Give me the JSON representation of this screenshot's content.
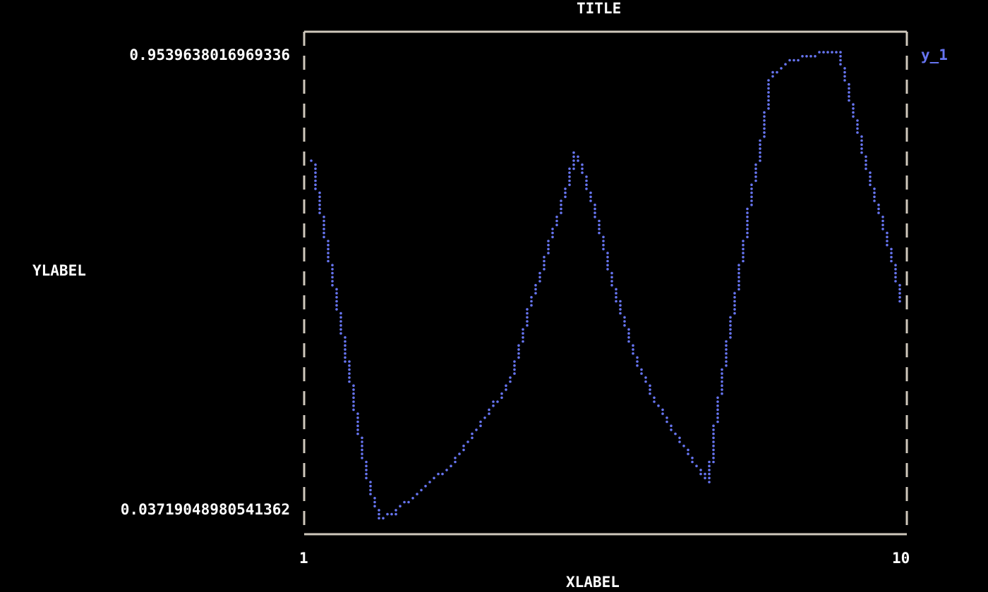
{
  "chart_data": {
    "type": "scatter",
    "title": "TITLE",
    "xlabel": "XLABEL",
    "ylabel": "YLABEL",
    "xlim": [
      1,
      10
    ],
    "ylim": [
      0.03719048980541362,
      0.9539638016969336
    ],
    "x_ticks": [
      "1",
      "10"
    ],
    "y_ticks": [
      "0.9539638016969336",
      "0.03719048980541362"
    ],
    "grid": false,
    "legend_placement": "right",
    "colors": {
      "series": "#6674f0",
      "axes": "#cfc8bc",
      "text": "#ffffff",
      "background": "#000000"
    },
    "series": [
      {
        "name": "y_1",
        "x": [
          1.1,
          1.31,
          1.52,
          1.7,
          1.83,
          1.94,
          2.1,
          2.36,
          2.78,
          3.2,
          3.62,
          4.05,
          4.36,
          4.68,
          4.89,
          5.02,
          5.16,
          5.37,
          5.63,
          5.89,
          6.15,
          6.47,
          6.79,
          7.02,
          7.1,
          7.31,
          7.52,
          7.68,
          7.84,
          7.94,
          8.16,
          8.58,
          8.95,
          9.1,
          9.31,
          9.58,
          9.79,
          9.89
        ],
        "y": [
          0.741,
          0.57,
          0.418,
          0.28,
          0.17,
          0.101,
          0.037,
          0.052,
          0.101,
          0.149,
          0.225,
          0.308,
          0.46,
          0.598,
          0.681,
          0.757,
          0.708,
          0.612,
          0.474,
          0.363,
          0.28,
          0.211,
          0.149,
          0.108,
          0.211,
          0.391,
          0.557,
          0.695,
          0.805,
          0.902,
          0.929,
          0.947,
          0.954,
          0.874,
          0.764,
          0.625,
          0.529,
          0.467
        ]
      }
    ]
  }
}
